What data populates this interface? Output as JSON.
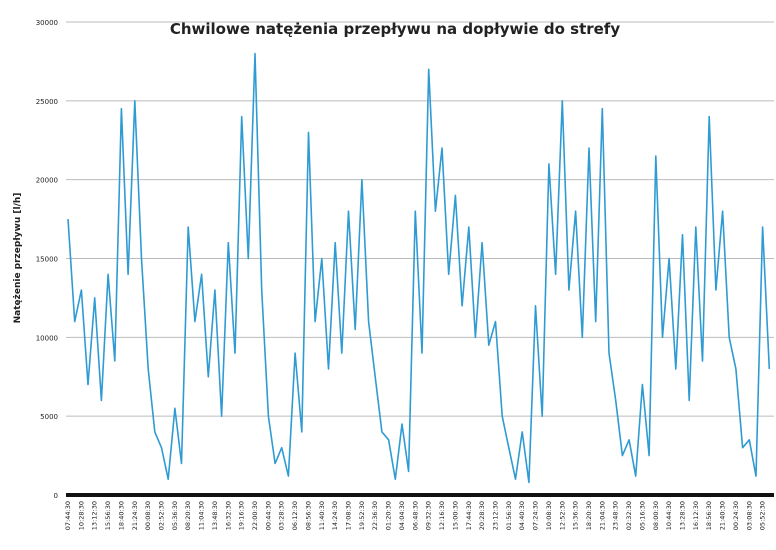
{
  "chart_data": {
    "type": "line",
    "title": "Chwilowe natężenia przepływu na dopływie do strefy",
    "y_label": "Natężenie przepływu [l/h]",
    "categories": [
      "07:44:30",
      null,
      "10:28:30",
      null,
      "13:12:30",
      null,
      "15:56:30",
      null,
      "18:40:30",
      null,
      "21:24:30",
      null,
      "00:08:30",
      null,
      "02:52:30",
      null,
      "05:36:30",
      null,
      "08:20:30",
      null,
      "11:04:30",
      null,
      "13:48:30",
      null,
      "16:32:30",
      null,
      "19:16:30",
      null,
      "22:00:30",
      null,
      "00:44:30",
      null,
      "03:28:30",
      null,
      "06:12:30",
      null,
      "08:56:30",
      null,
      "11:40:30",
      null,
      "14:24:30",
      null,
      "17:08:30",
      null,
      "19:52:30",
      null,
      "22:36:30",
      null,
      "01:20:30",
      null,
      "04:04:30",
      null,
      "06:48:30",
      null,
      "09:32:30",
      null,
      "12:16:30",
      null,
      "15:00:30",
      null,
      "17:44:30",
      null,
      "20:28:30",
      null,
      "23:12:30",
      null,
      "01:56:30",
      null,
      "04:40:30",
      null,
      "07:24:30",
      null,
      "10:08:30",
      null,
      "12:52:30",
      null,
      "15:36:30",
      null,
      "18:20:30",
      null,
      "21:04:30",
      null,
      "23:48:30",
      null,
      "02:32:30",
      null,
      "05:16:30",
      null,
      "08:00:30",
      null,
      "10:44:30",
      null,
      "13:28:30",
      null,
      "16:12:30",
      null,
      "18:56:30",
      null,
      "21:40:30",
      null,
      "00:24:30",
      null,
      "03:08:30",
      null,
      "05:52:30",
      null
    ],
    "series": [
      {
        "color": "#2f9bd3",
        "values": [
          17500,
          11000,
          13000,
          7000,
          12500,
          6000,
          14000,
          8500,
          24500,
          14000,
          25000,
          15000,
          8000,
          4000,
          3000,
          1000,
          5500,
          2000,
          17000,
          11000,
          14000,
          7500,
          13000,
          5000,
          16000,
          9000,
          24000,
          15000,
          28000,
          13000,
          5000,
          2000,
          3000,
          1200,
          9000,
          4000,
          23000,
          11000,
          15000,
          8000,
          16000,
          9000,
          18000,
          10500,
          20000,
          11000,
          7500,
          4000,
          3500,
          1000,
          4500,
          1500,
          18000,
          9000,
          27000,
          18000,
          22000,
          14000,
          19000,
          12000,
          17000,
          10000,
          16000,
          9500,
          11000,
          5000,
          3000,
          1000,
          4000,
          800,
          12000,
          5000,
          21000,
          14000,
          25000,
          13000,
          18000,
          10000,
          22000,
          11000,
          24500,
          9000,
          6000,
          2500,
          3500,
          1200,
          7000,
          2500,
          21500,
          10000,
          15000,
          8000,
          16500,
          6000,
          17000,
          8500,
          24000,
          13000,
          18000,
          10000,
          8000,
          3000,
          3500,
          1200,
          17000,
          8000
        ]
      }
    ],
    "ylim": [
      0,
      30000
    ],
    "yticks": [
      0,
      5000,
      10000,
      15000,
      20000,
      25000,
      30000
    ],
    "grid": true
  }
}
